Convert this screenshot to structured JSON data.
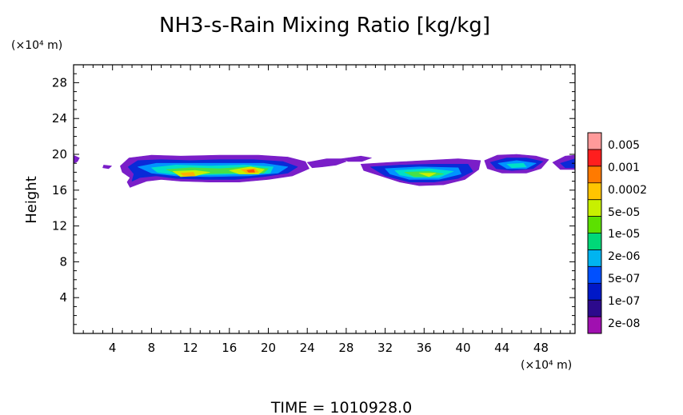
{
  "chart_data": {
    "type": "heatmap",
    "title": "NH3-s-Rain Mixing Ratio [kg/kg]",
    "ylabel": "Height",
    "x_unit": "(×10⁴ m)",
    "y_unit": "(×10⁴ m)",
    "xlim": [
      0,
      51.5
    ],
    "ylim": [
      0,
      30
    ],
    "x_ticks": [
      4,
      8,
      12,
      16,
      20,
      24,
      28,
      32,
      36,
      40,
      44,
      48
    ],
    "y_ticks": [
      4,
      8,
      12,
      16,
      20,
      24,
      28
    ],
    "time_label": "TIME  =  1010928.0",
    "colorbar": {
      "labels": [
        "0.005",
        "0.001",
        "0.0002",
        "5e-05",
        "1e-05",
        "2e-06",
        "5e-07",
        "1e-07",
        "2e-08"
      ],
      "colors": [
        "#ff1e1e",
        "#ff7a00",
        "#ffc400",
        "#c8f000",
        "#5ce000",
        "#00d878",
        "#00b4f0",
        "#0050ff",
        "#0018c8",
        "#2c0a8c"
      ],
      "top_color": "#ff9a9a",
      "bottom_color": "#a010b0"
    },
    "regions": [
      {
        "level": 0,
        "pts": [
          [
            4.8,
            18.7
          ],
          [
            5.7,
            19.6
          ],
          [
            8.0,
            19.9
          ],
          [
            11.0,
            19.8
          ],
          [
            15.0,
            19.9
          ],
          [
            19.0,
            19.9
          ],
          [
            22.0,
            19.7
          ],
          [
            23.8,
            19.2
          ],
          [
            24.2,
            18.4
          ],
          [
            22.5,
            17.6
          ],
          [
            20.0,
            17.2
          ],
          [
            17.0,
            16.9
          ],
          [
            14.0,
            16.9
          ],
          [
            11.0,
            17.0
          ],
          [
            9.0,
            17.2
          ],
          [
            7.5,
            17.0
          ],
          [
            6.5,
            16.6
          ],
          [
            5.8,
            16.3
          ],
          [
            5.5,
            16.9
          ],
          [
            5.8,
            17.4
          ],
          [
            5.0,
            18.0
          ]
        ]
      },
      {
        "level": 0,
        "pts": [
          [
            24.0,
            19.1
          ],
          [
            26.0,
            19.5
          ],
          [
            27.5,
            19.5
          ],
          [
            28.0,
            19.2
          ],
          [
            27.0,
            18.8
          ],
          [
            25.5,
            18.6
          ],
          [
            24.5,
            18.5
          ]
        ]
      },
      {
        "level": 0,
        "pts": [
          [
            27.5,
            19.5
          ],
          [
            29.5,
            19.8
          ],
          [
            30.6,
            19.6
          ],
          [
            29.6,
            19.2
          ],
          [
            28.2,
            19.2
          ]
        ]
      },
      {
        "level": 0,
        "pts": [
          [
            29.5,
            18.9
          ],
          [
            32.5,
            19.1
          ],
          [
            36.0,
            19.3
          ],
          [
            39.5,
            19.5
          ],
          [
            41.8,
            19.3
          ],
          [
            41.6,
            18.3
          ],
          [
            40.2,
            17.2
          ],
          [
            38.0,
            16.6
          ],
          [
            35.5,
            16.5
          ],
          [
            33.5,
            16.9
          ],
          [
            31.5,
            17.6
          ],
          [
            29.8,
            18.2
          ]
        ]
      },
      {
        "level": 0,
        "pts": [
          [
            42.2,
            19.3
          ],
          [
            43.5,
            19.9
          ],
          [
            45.5,
            20.0
          ],
          [
            47.5,
            19.8
          ],
          [
            48.8,
            19.4
          ],
          [
            48.0,
            18.4
          ],
          [
            46.5,
            17.9
          ],
          [
            44.0,
            17.9
          ],
          [
            42.5,
            18.4
          ]
        ]
      },
      {
        "level": 0,
        "pts": [
          [
            49.2,
            19.1
          ],
          [
            50.5,
            19.8
          ],
          [
            51.5,
            19.9
          ],
          [
            51.5,
            18.3
          ],
          [
            50.0,
            18.3
          ]
        ]
      },
      {
        "level": 0,
        "pts": [
          [
            0,
            19.9
          ],
          [
            0.6,
            19.6
          ],
          [
            0.4,
            19.2
          ],
          [
            0,
            19.0
          ]
        ]
      },
      {
        "level": 0,
        "pts": [
          [
            3.1,
            18.8
          ],
          [
            3.9,
            18.7
          ],
          [
            3.6,
            18.4
          ],
          [
            3.0,
            18.5
          ]
        ]
      },
      {
        "level": 1,
        "pts": [
          [
            5.6,
            18.6
          ],
          [
            6.6,
            19.3
          ],
          [
            9.0,
            19.4
          ],
          [
            12.0,
            19.3
          ],
          [
            15.0,
            19.4
          ],
          [
            18.5,
            19.4
          ],
          [
            21.5,
            19.2
          ],
          [
            23.0,
            18.6
          ],
          [
            22.0,
            17.9
          ],
          [
            19.5,
            17.5
          ],
          [
            16.5,
            17.2
          ],
          [
            13.5,
            17.2
          ],
          [
            10.5,
            17.3
          ],
          [
            8.5,
            17.6
          ],
          [
            6.8,
            17.4
          ],
          [
            6.0,
            17.0
          ],
          [
            6.2,
            17.8
          ]
        ]
      },
      {
        "level": 1,
        "pts": [
          [
            30.5,
            18.6
          ],
          [
            33.5,
            18.8
          ],
          [
            37.0,
            18.9
          ],
          [
            40.5,
            18.9
          ],
          [
            41.0,
            18.1
          ],
          [
            39.5,
            17.3
          ],
          [
            37.0,
            16.9
          ],
          [
            34.5,
            16.9
          ],
          [
            32.0,
            17.6
          ]
        ]
      },
      {
        "level": 1,
        "pts": [
          [
            42.8,
            19.1
          ],
          [
            44.5,
            19.6
          ],
          [
            46.5,
            19.6
          ],
          [
            48.2,
            19.2
          ],
          [
            47.2,
            18.4
          ],
          [
            45.0,
            18.2
          ],
          [
            43.4,
            18.4
          ]
        ]
      },
      {
        "level": 1,
        "pts": [
          [
            50.0,
            19.0
          ],
          [
            51.5,
            19.5
          ],
          [
            51.5,
            18.5
          ],
          [
            50.5,
            18.5
          ]
        ]
      },
      {
        "level": 2,
        "pts": [
          [
            6.6,
            18.6
          ],
          [
            8.5,
            19.0
          ],
          [
            12.0,
            19.0
          ],
          [
            16.0,
            19.0
          ],
          [
            19.5,
            19.0
          ],
          [
            22.0,
            18.6
          ],
          [
            21.0,
            17.9
          ],
          [
            18.0,
            17.6
          ],
          [
            14.0,
            17.5
          ],
          [
            10.5,
            17.6
          ],
          [
            8.0,
            17.9
          ]
        ]
      },
      {
        "level": 2,
        "pts": [
          [
            32.0,
            18.4
          ],
          [
            35.5,
            18.6
          ],
          [
            39.5,
            18.5
          ],
          [
            39.8,
            17.8
          ],
          [
            37.5,
            17.2
          ],
          [
            34.5,
            17.2
          ],
          [
            32.5,
            17.8
          ]
        ]
      },
      {
        "level": 2,
        "pts": [
          [
            43.6,
            19.0
          ],
          [
            45.5,
            19.3
          ],
          [
            47.5,
            19.0
          ],
          [
            46.5,
            18.4
          ],
          [
            44.5,
            18.4
          ]
        ]
      },
      {
        "level": 3,
        "pts": [
          [
            8.0,
            18.5
          ],
          [
            10.5,
            18.8
          ],
          [
            14.0,
            18.7
          ],
          [
            17.5,
            18.8
          ],
          [
            20.5,
            18.6
          ],
          [
            20.2,
            17.9
          ],
          [
            17.0,
            17.8
          ],
          [
            13.0,
            17.7
          ],
          [
            10.0,
            17.8
          ],
          [
            8.6,
            18.0
          ]
        ]
      },
      {
        "level": 3,
        "pts": [
          [
            33.0,
            18.2
          ],
          [
            36.5,
            18.4
          ],
          [
            39.0,
            18.1
          ],
          [
            37.5,
            17.4
          ],
          [
            35.0,
            17.4
          ],
          [
            33.5,
            17.7
          ]
        ]
      },
      {
        "level": 3,
        "pts": [
          [
            44.5,
            18.9
          ],
          [
            46.2,
            19.0
          ],
          [
            46.5,
            18.6
          ],
          [
            45.0,
            18.5
          ]
        ]
      },
      {
        "level": 4,
        "pts": [
          [
            9.5,
            18.3
          ],
          [
            12.0,
            18.5
          ],
          [
            15.0,
            18.4
          ],
          [
            18.0,
            18.6
          ],
          [
            20.0,
            18.4
          ],
          [
            19.5,
            17.9
          ],
          [
            16.5,
            17.9
          ],
          [
            13.0,
            17.8
          ],
          [
            10.5,
            17.9
          ]
        ]
      },
      {
        "level": 4,
        "pts": [
          [
            34.0,
            18.0
          ],
          [
            36.5,
            18.1
          ],
          [
            38.0,
            17.8
          ],
          [
            36.5,
            17.5
          ],
          [
            35.0,
            17.5
          ]
        ]
      },
      {
        "level": 5,
        "pts": [
          [
            10.2,
            18.1
          ],
          [
            12.5,
            18.2
          ],
          [
            14.0,
            18.0
          ],
          [
            12.5,
            17.6
          ],
          [
            11.0,
            17.5
          ]
        ]
      },
      {
        "level": 5,
        "pts": [
          [
            16.0,
            18.2
          ],
          [
            18.2,
            18.6
          ],
          [
            19.6,
            18.3
          ],
          [
            19.0,
            17.8
          ],
          [
            17.0,
            17.8
          ]
        ]
      },
      {
        "level": 5,
        "pts": [
          [
            35.5,
            17.9
          ],
          [
            37.2,
            17.9
          ],
          [
            36.5,
            17.5
          ]
        ]
      },
      {
        "level": 6,
        "pts": [
          [
            11.0,
            17.9
          ],
          [
            12.3,
            18.0
          ],
          [
            12.5,
            17.6
          ],
          [
            11.3,
            17.6
          ]
        ]
      },
      {
        "level": 6,
        "pts": [
          [
            17.2,
            18.3
          ],
          [
            18.6,
            18.4
          ],
          [
            19.0,
            18.0
          ],
          [
            17.8,
            17.9
          ]
        ]
      },
      {
        "level": 7,
        "pts": [
          [
            17.8,
            18.2
          ],
          [
            18.5,
            18.3
          ],
          [
            18.6,
            18.0
          ],
          [
            18.0,
            18.0
          ]
        ]
      }
    ]
  }
}
